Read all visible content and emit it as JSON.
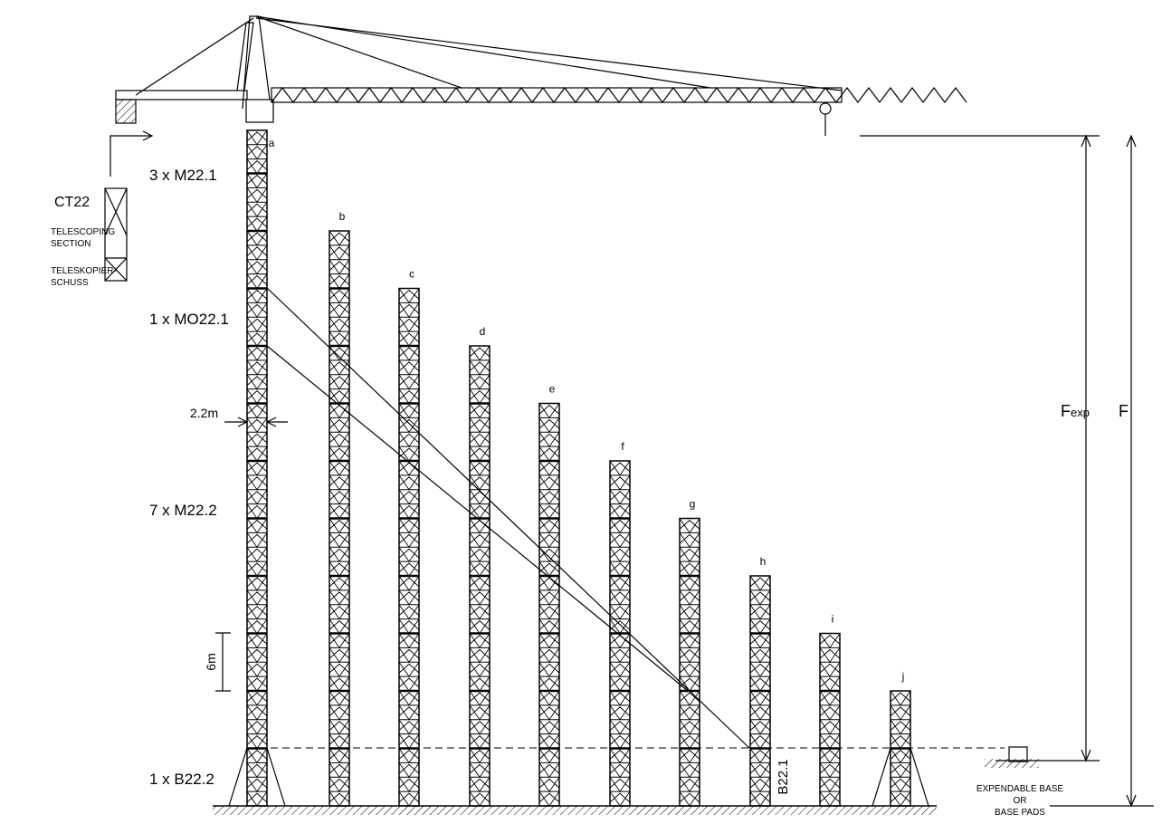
{
  "legend": {
    "model": "CT22",
    "telescoping_en": [
      "TELESCOPING",
      "SECTION"
    ],
    "telescoping_de": [
      "TELESKOPIER-",
      "SCHUSS"
    ]
  },
  "sections": [
    "3 x M22.1",
    "1 x MO22.1",
    "7 x M22.2",
    "1 x B22.2"
  ],
  "masts": [
    "a",
    "b",
    "c",
    "d",
    "e",
    "f",
    "g",
    "h",
    "i",
    "j"
  ],
  "dimensions": {
    "width": "2.2m",
    "section": "6m",
    "base_section": "B22.1",
    "f_exp": "F",
    "f_exp_sub": "exp",
    "f": "F"
  },
  "base": [
    "EXPENDABLE BASE",
    "OR",
    "BASE PADS"
  ]
}
